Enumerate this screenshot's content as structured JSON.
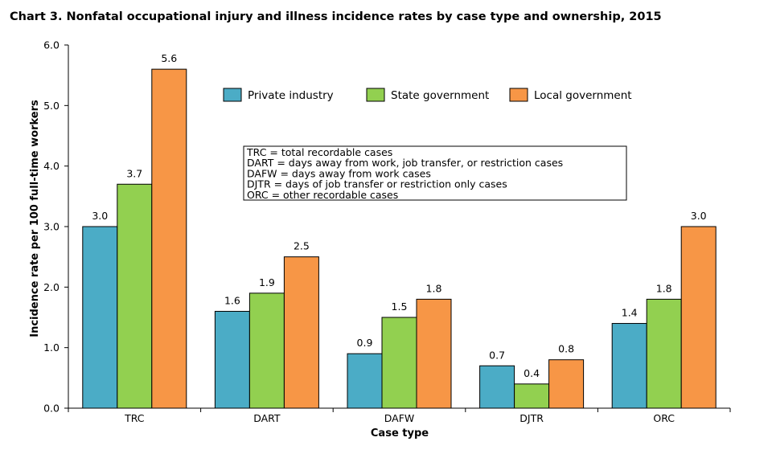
{
  "chart_data": {
    "type": "bar",
    "title": "Chart 3. Nonfatal occupational injury and illness incidence rates by case type and ownership, 2015",
    "xlabel": "Case type",
    "ylabel": "Incidence rate per 100 full-time workers",
    "categories": [
      "TRC",
      "DART",
      "DAFW",
      "DJTR",
      "ORC"
    ],
    "ylim": [
      0,
      6
    ],
    "yticks": [
      "0.0",
      "1.0",
      "2.0",
      "3.0",
      "4.0",
      "5.0",
      "6.0"
    ],
    "grid": false,
    "legend_position": "top-right",
    "series": [
      {
        "name": "Private industry",
        "color": "#4BACC6",
        "values": [
          3.0,
          1.6,
          0.9,
          0.7,
          1.4
        ],
        "labels": [
          "3.0",
          "1.6",
          "0.9",
          "0.7",
          "1.4"
        ]
      },
      {
        "name": "State government",
        "color": "#92D050",
        "values": [
          3.7,
          1.9,
          1.5,
          0.4,
          1.8
        ],
        "labels": [
          "3.7",
          "1.9",
          "1.5",
          "0.4",
          "1.8"
        ]
      },
      {
        "name": "Local government",
        "color": "#F79646",
        "values": [
          5.6,
          2.5,
          1.8,
          0.8,
          3.0
        ],
        "labels": [
          "5.6",
          "2.5",
          "1.8",
          "0.8",
          "3.0"
        ]
      }
    ],
    "annotations": [
      "TRC = total recordable cases",
      "DART = days away from work, job transfer, or restriction cases",
      "DAFW = days away from work cases",
      "DJTR = days of job transfer or restriction only cases",
      "ORC = other recordable cases"
    ]
  }
}
